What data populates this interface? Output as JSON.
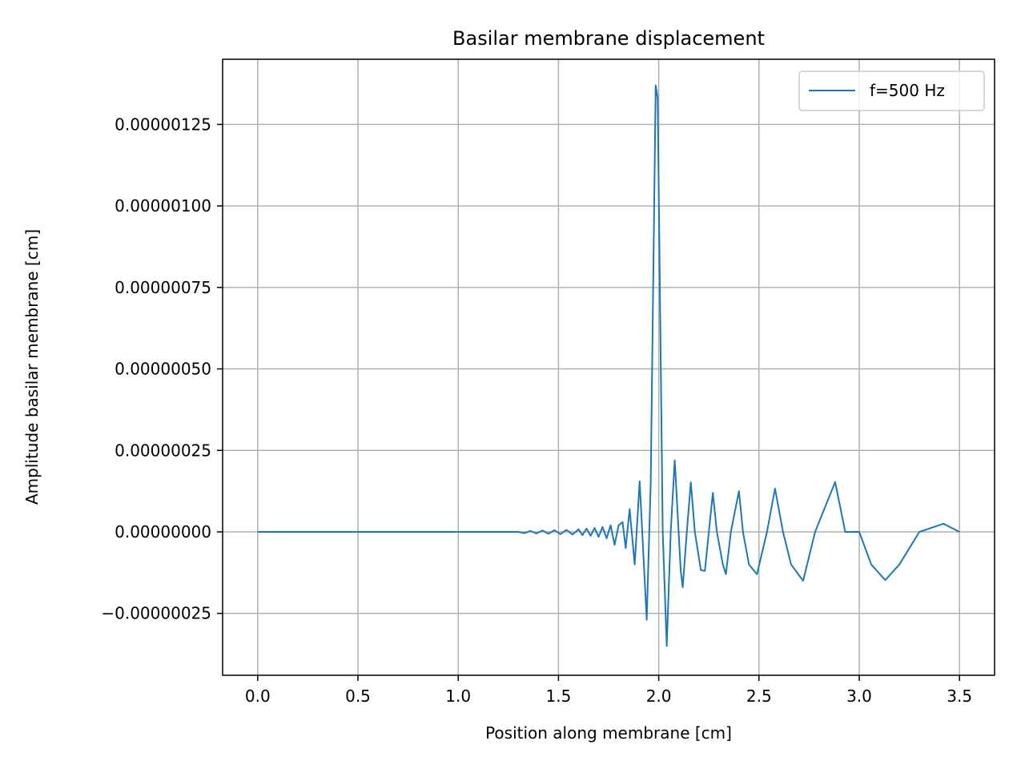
{
  "chart_data": {
    "type": "line",
    "title": "Basilar membrane displacement",
    "xlabel": "Position along membrane [cm]",
    "ylabel": "Amplitude basilar membrane [cm]",
    "xlim": [
      -0.175,
      3.675
    ],
    "ylim": [
      -4.4e-07,
      1.45e-06
    ],
    "grid": true,
    "legend_position": "top-right",
    "x_ticks": [
      {
        "value": 0.0,
        "label": "0.0"
      },
      {
        "value": 0.5,
        "label": "0.5"
      },
      {
        "value": 1.0,
        "label": "1.0"
      },
      {
        "value": 1.5,
        "label": "1.5"
      },
      {
        "value": 2.0,
        "label": "2.0"
      },
      {
        "value": 2.5,
        "label": "2.5"
      },
      {
        "value": 3.0,
        "label": "3.0"
      },
      {
        "value": 3.5,
        "label": "3.5"
      }
    ],
    "y_ticks": [
      {
        "value": -2.5e-07,
        "label": "−0.00000025"
      },
      {
        "value": 0.0,
        "label": "0.00000000"
      },
      {
        "value": 2.5e-07,
        "label": "0.00000025"
      },
      {
        "value": 5e-07,
        "label": "0.00000050"
      },
      {
        "value": 7.5e-07,
        "label": "0.00000075"
      },
      {
        "value": 1e-06,
        "label": "0.00000100"
      },
      {
        "value": 1.25e-06,
        "label": "0.00000125"
      }
    ],
    "series": [
      {
        "name": "f=500 Hz",
        "color": "#1f77b4",
        "points": [
          [
            0.0,
            0.0
          ],
          [
            1.0,
            0.0
          ],
          [
            1.05,
            0.0
          ],
          [
            1.1,
            0.0
          ],
          [
            1.15,
            0.0
          ],
          [
            1.2,
            0.0
          ],
          [
            1.25,
            0.0
          ],
          [
            1.3,
            0.0
          ],
          [
            1.33,
            -4e-09
          ],
          [
            1.36,
            3e-09
          ],
          [
            1.39,
            -5e-09
          ],
          [
            1.42,
            4e-09
          ],
          [
            1.45,
            -6e-09
          ],
          [
            1.48,
            5e-09
          ],
          [
            1.51,
            -7e-09
          ],
          [
            1.54,
            6e-09
          ],
          [
            1.57,
            -8e-09
          ],
          [
            1.6,
            8e-09
          ],
          [
            1.62,
            -1e-08
          ],
          [
            1.64,
            1e-08
          ],
          [
            1.66,
            -1.2e-08
          ],
          [
            1.68,
            1.2e-08
          ],
          [
            1.7,
            -1.5e-08
          ],
          [
            1.72,
            1.5e-08
          ],
          [
            1.74,
            -2e-08
          ],
          [
            1.76,
            2e-08
          ],
          [
            1.78,
            -4e-08
          ],
          [
            1.8,
            2e-08
          ],
          [
            1.82,
            3e-08
          ],
          [
            1.835,
            -5e-08
          ],
          [
            1.855,
            7e-08
          ],
          [
            1.88,
            -1e-07
          ],
          [
            1.905,
            1.55e-07
          ],
          [
            1.94,
            -2.7e-07
          ],
          [
            1.96,
            1.5e-07
          ],
          [
            1.985,
            1.37e-06
          ],
          [
            1.995,
            1.33e-06
          ],
          [
            2.02,
            0.0
          ],
          [
            2.04,
            -3.5e-07
          ],
          [
            2.06,
            0.0
          ],
          [
            2.08,
            2.2e-07
          ],
          [
            2.11,
            -1.2e-07
          ],
          [
            2.12,
            -1.7e-07
          ],
          [
            2.14,
            0.0
          ],
          [
            2.16,
            1.52e-07
          ],
          [
            2.18,
            0.0
          ],
          [
            2.21,
            -1.17e-07
          ],
          [
            2.23,
            -1.2e-07
          ],
          [
            2.25,
            0.0
          ],
          [
            2.27,
            1.2e-07
          ],
          [
            2.29,
            0.0
          ],
          [
            2.32,
            -1e-07
          ],
          [
            2.335,
            -1.3e-07
          ],
          [
            2.36,
            0.0
          ],
          [
            2.4,
            1.25e-07
          ],
          [
            2.42,
            0.0
          ],
          [
            2.45,
            -1e-07
          ],
          [
            2.49,
            -1.3e-07
          ],
          [
            2.54,
            0.0
          ],
          [
            2.58,
            1.33e-07
          ],
          [
            2.62,
            0.0
          ],
          [
            2.66,
            -1e-07
          ],
          [
            2.72,
            -1.5e-07
          ],
          [
            2.78,
            0.0
          ],
          [
            2.88,
            1.53e-07
          ],
          [
            2.93,
            0.0
          ],
          [
            3.0,
            0.0
          ],
          [
            3.06,
            -1e-07
          ],
          [
            3.13,
            -1.48e-07
          ],
          [
            3.2,
            -1e-07
          ],
          [
            3.3,
            0.0
          ],
          [
            3.42,
            2.5e-08
          ],
          [
            3.5,
            0.0
          ]
        ]
      }
    ]
  }
}
